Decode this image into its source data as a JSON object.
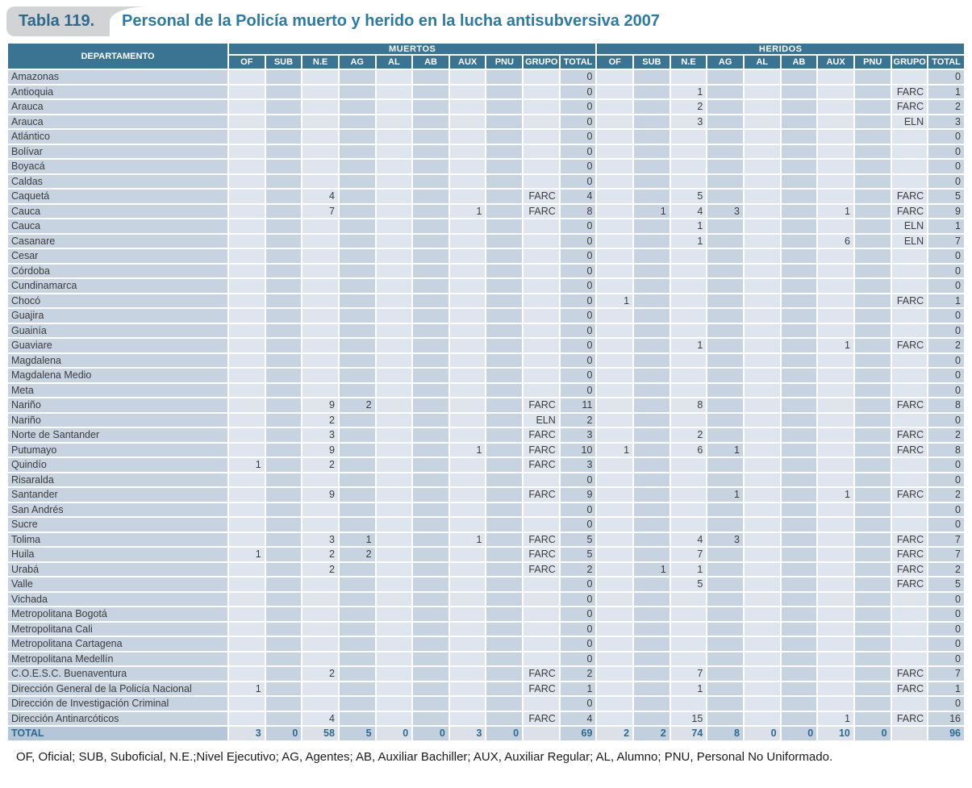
{
  "title": {
    "tab_label": "Tabla 119.",
    "text": "Personal de la Policía muerto y herido en la lucha antisubversiva 2007"
  },
  "table": {
    "dept_header": "DEPARTAMENTO",
    "groups": [
      {
        "label": "MUERTOS"
      },
      {
        "label": "HERIDOS"
      }
    ],
    "columns": [
      "OF",
      "SUB",
      "N.E",
      "AG",
      "AL",
      "AB",
      "AUX",
      "PNU",
      "GRUPO",
      "TOTAL"
    ],
    "rows": [
      {
        "dept": "Amazonas",
        "muertos": [
          "",
          "",
          "",
          "",
          "",
          "",
          "",
          "",
          "",
          "0"
        ],
        "heridos": [
          "",
          "",
          "",
          "",
          "",
          "",
          "",
          "",
          "",
          "0"
        ]
      },
      {
        "dept": "Antioquia",
        "muertos": [
          "",
          "",
          "",
          "",
          "",
          "",
          "",
          "",
          "",
          "0"
        ],
        "heridos": [
          "",
          "",
          "1",
          "",
          "",
          "",
          "",
          "",
          "FARC",
          "1"
        ]
      },
      {
        "dept": "Arauca",
        "muertos": [
          "",
          "",
          "",
          "",
          "",
          "",
          "",
          "",
          "",
          "0"
        ],
        "heridos": [
          "",
          "",
          "2",
          "",
          "",
          "",
          "",
          "",
          "FARC",
          "2"
        ]
      },
      {
        "dept": "Arauca",
        "muertos": [
          "",
          "",
          "",
          "",
          "",
          "",
          "",
          "",
          "",
          "0"
        ],
        "heridos": [
          "",
          "",
          "3",
          "",
          "",
          "",
          "",
          "",
          "ELN",
          "3"
        ]
      },
      {
        "dept": "Atlántico",
        "muertos": [
          "",
          "",
          "",
          "",
          "",
          "",
          "",
          "",
          "",
          "0"
        ],
        "heridos": [
          "",
          "",
          "",
          "",
          "",
          "",
          "",
          "",
          "",
          "0"
        ]
      },
      {
        "dept": "Bolívar",
        "muertos": [
          "",
          "",
          "",
          "",
          "",
          "",
          "",
          "",
          "",
          "0"
        ],
        "heridos": [
          "",
          "",
          "",
          "",
          "",
          "",
          "",
          "",
          "",
          "0"
        ]
      },
      {
        "dept": "Boyacá",
        "muertos": [
          "",
          "",
          "",
          "",
          "",
          "",
          "",
          "",
          "",
          "0"
        ],
        "heridos": [
          "",
          "",
          "",
          "",
          "",
          "",
          "",
          "",
          "",
          "0"
        ]
      },
      {
        "dept": "Caldas",
        "muertos": [
          "",
          "",
          "",
          "",
          "",
          "",
          "",
          "",
          "",
          "0"
        ],
        "heridos": [
          "",
          "",
          "",
          "",
          "",
          "",
          "",
          "",
          "",
          "0"
        ]
      },
      {
        "dept": "Caquetá",
        "muertos": [
          "",
          "",
          "4",
          "",
          "",
          "",
          "",
          "",
          "FARC",
          "4"
        ],
        "heridos": [
          "",
          "",
          "5",
          "",
          "",
          "",
          "",
          "",
          "FARC",
          "5"
        ]
      },
      {
        "dept": "Cauca",
        "muertos": [
          "",
          "",
          "7",
          "",
          "",
          "",
          "1",
          "",
          "FARC",
          "8"
        ],
        "heridos": [
          "",
          "1",
          "4",
          "3",
          "",
          "",
          "1",
          "",
          "FARC",
          "9"
        ]
      },
      {
        "dept": "Cauca",
        "muertos": [
          "",
          "",
          "",
          "",
          "",
          "",
          "",
          "",
          "",
          "0"
        ],
        "heridos": [
          "",
          "",
          "1",
          "",
          "",
          "",
          "",
          "",
          "ELN",
          "1"
        ]
      },
      {
        "dept": "Casanare",
        "muertos": [
          "",
          "",
          "",
          "",
          "",
          "",
          "",
          "",
          "",
          "0"
        ],
        "heridos": [
          "",
          "",
          "1",
          "",
          "",
          "",
          "6",
          "",
          "ELN",
          "7"
        ]
      },
      {
        "dept": "Cesar",
        "muertos": [
          "",
          "",
          "",
          "",
          "",
          "",
          "",
          "",
          "",
          "0"
        ],
        "heridos": [
          "",
          "",
          "",
          "",
          "",
          "",
          "",
          "",
          "",
          "0"
        ]
      },
      {
        "dept": "Córdoba",
        "muertos": [
          "",
          "",
          "",
          "",
          "",
          "",
          "",
          "",
          "",
          "0"
        ],
        "heridos": [
          "",
          "",
          "",
          "",
          "",
          "",
          "",
          "",
          "",
          "0"
        ]
      },
      {
        "dept": "Cundinamarca",
        "muertos": [
          "",
          "",
          "",
          "",
          "",
          "",
          "",
          "",
          "",
          "0"
        ],
        "heridos": [
          "",
          "",
          "",
          "",
          "",
          "",
          "",
          "",
          "",
          "0"
        ]
      },
      {
        "dept": "Chocó",
        "muertos": [
          "",
          "",
          "",
          "",
          "",
          "",
          "",
          "",
          "",
          "0"
        ],
        "heridos": [
          "1",
          "",
          "",
          "",
          "",
          "",
          "",
          "",
          "FARC",
          "1"
        ]
      },
      {
        "dept": "Guajira",
        "muertos": [
          "",
          "",
          "",
          "",
          "",
          "",
          "",
          "",
          "",
          "0"
        ],
        "heridos": [
          "",
          "",
          "",
          "",
          "",
          "",
          "",
          "",
          "",
          "0"
        ]
      },
      {
        "dept": "Guainía",
        "muertos": [
          "",
          "",
          "",
          "",
          "",
          "",
          "",
          "",
          "",
          "0"
        ],
        "heridos": [
          "",
          "",
          "",
          "",
          "",
          "",
          "",
          "",
          "",
          "0"
        ]
      },
      {
        "dept": "Guaviare",
        "muertos": [
          "",
          "",
          "",
          "",
          "",
          "",
          "",
          "",
          "",
          "0"
        ],
        "heridos": [
          "",
          "",
          "1",
          "",
          "",
          "",
          "1",
          "",
          "FARC",
          "2"
        ]
      },
      {
        "dept": "Magdalena",
        "muertos": [
          "",
          "",
          "",
          "",
          "",
          "",
          "",
          "",
          "",
          "0"
        ],
        "heridos": [
          "",
          "",
          "",
          "",
          "",
          "",
          "",
          "",
          "",
          "0"
        ]
      },
      {
        "dept": "Magdalena Medio",
        "muertos": [
          "",
          "",
          "",
          "",
          "",
          "",
          "",
          "",
          "",
          "0"
        ],
        "heridos": [
          "",
          "",
          "",
          "",
          "",
          "",
          "",
          "",
          "",
          "0"
        ]
      },
      {
        "dept": "Meta",
        "muertos": [
          "",
          "",
          "",
          "",
          "",
          "",
          "",
          "",
          "",
          "0"
        ],
        "heridos": [
          "",
          "",
          "",
          "",
          "",
          "",
          "",
          "",
          "",
          "0"
        ]
      },
      {
        "dept": "Nariño",
        "muertos": [
          "",
          "",
          "9",
          "2",
          "",
          "",
          "",
          "",
          "FARC",
          "11"
        ],
        "heridos": [
          "",
          "",
          "8",
          "",
          "",
          "",
          "",
          "",
          "FARC",
          "8"
        ]
      },
      {
        "dept": "Nariño",
        "muertos": [
          "",
          "",
          "2",
          "",
          "",
          "",
          "",
          "",
          "ELN",
          "2"
        ],
        "heridos": [
          "",
          "",
          "",
          "",
          "",
          "",
          "",
          "",
          "",
          "0"
        ]
      },
      {
        "dept": "Norte de Santander",
        "muertos": [
          "",
          "",
          "3",
          "",
          "",
          "",
          "",
          "",
          "FARC",
          "3"
        ],
        "heridos": [
          "",
          "",
          "2",
          "",
          "",
          "",
          "",
          "",
          "FARC",
          "2"
        ]
      },
      {
        "dept": "Putumayo",
        "muertos": [
          "",
          "",
          "9",
          "",
          "",
          "",
          "1",
          "",
          "FARC",
          "10"
        ],
        "heridos": [
          "1",
          "",
          "6",
          "1",
          "",
          "",
          "",
          "",
          "FARC",
          "8"
        ]
      },
      {
        "dept": "Quindío",
        "muertos": [
          "1",
          "",
          "2",
          "",
          "",
          "",
          "",
          "",
          "FARC",
          "3"
        ],
        "heridos": [
          "",
          "",
          "",
          "",
          "",
          "",
          "",
          "",
          "",
          "0"
        ]
      },
      {
        "dept": "Risaralda",
        "muertos": [
          "",
          "",
          "",
          "",
          "",
          "",
          "",
          "",
          "",
          "0"
        ],
        "heridos": [
          "",
          "",
          "",
          "",
          "",
          "",
          "",
          "",
          "",
          "0"
        ]
      },
      {
        "dept": "Santander",
        "muertos": [
          "",
          "",
          "9",
          "",
          "",
          "",
          "",
          "",
          "FARC",
          "9"
        ],
        "heridos": [
          "",
          "",
          "",
          "1",
          "",
          "",
          "1",
          "",
          "FARC",
          "2"
        ]
      },
      {
        "dept": "San Andrés",
        "muertos": [
          "",
          "",
          "",
          "",
          "",
          "",
          "",
          "",
          "",
          "0"
        ],
        "heridos": [
          "",
          "",
          "",
          "",
          "",
          "",
          "",
          "",
          "",
          "0"
        ]
      },
      {
        "dept": "Sucre",
        "muertos": [
          "",
          "",
          "",
          "",
          "",
          "",
          "",
          "",
          "",
          "0"
        ],
        "heridos": [
          "",
          "",
          "",
          "",
          "",
          "",
          "",
          "",
          "",
          "0"
        ]
      },
      {
        "dept": "Tolima",
        "muertos": [
          "",
          "",
          "3",
          "1",
          "",
          "",
          "1",
          "",
          "FARC",
          "5"
        ],
        "heridos": [
          "",
          "",
          "4",
          "3",
          "",
          "",
          "",
          "",
          "FARC",
          "7"
        ]
      },
      {
        "dept": "Huila",
        "muertos": [
          "1",
          "",
          "2",
          "2",
          "",
          "",
          "",
          "",
          "FARC",
          "5"
        ],
        "heridos": [
          "",
          "",
          "7",
          "",
          "",
          "",
          "",
          "",
          "FARC",
          "7"
        ]
      },
      {
        "dept": "Urabá",
        "muertos": [
          "",
          "",
          "2",
          "",
          "",
          "",
          "",
          "",
          "FARC",
          "2"
        ],
        "heridos": [
          "",
          "1",
          "1",
          "",
          "",
          "",
          "",
          "",
          "FARC",
          "2"
        ]
      },
      {
        "dept": "Valle",
        "muertos": [
          "",
          "",
          "",
          "",
          "",
          "",
          "",
          "",
          "",
          "0"
        ],
        "heridos": [
          "",
          "",
          "5",
          "",
          "",
          "",
          "",
          "",
          "FARC",
          "5"
        ]
      },
      {
        "dept": "Vichada",
        "muertos": [
          "",
          "",
          "",
          "",
          "",
          "",
          "",
          "",
          "",
          "0"
        ],
        "heridos": [
          "",
          "",
          "",
          "",
          "",
          "",
          "",
          "",
          "",
          "0"
        ]
      },
      {
        "dept": "Metropolitana Bogotá",
        "muertos": [
          "",
          "",
          "",
          "",
          "",
          "",
          "",
          "",
          "",
          "0"
        ],
        "heridos": [
          "",
          "",
          "",
          "",
          "",
          "",
          "",
          "",
          "",
          "0"
        ]
      },
      {
        "dept": "Metropolitana Cali",
        "muertos": [
          "",
          "",
          "",
          "",
          "",
          "",
          "",
          "",
          "",
          "0"
        ],
        "heridos": [
          "",
          "",
          "",
          "",
          "",
          "",
          "",
          "",
          "",
          "0"
        ]
      },
      {
        "dept": "Metropolitana Cartagena",
        "muertos": [
          "",
          "",
          "",
          "",
          "",
          "",
          "",
          "",
          "",
          "0"
        ],
        "heridos": [
          "",
          "",
          "",
          "",
          "",
          "",
          "",
          "",
          "",
          "0"
        ]
      },
      {
        "dept": "Metropolitana Medellín",
        "muertos": [
          "",
          "",
          "",
          "",
          "",
          "",
          "",
          "",
          "",
          "0"
        ],
        "heridos": [
          "",
          "",
          "",
          "",
          "",
          "",
          "",
          "",
          "",
          "0"
        ]
      },
      {
        "dept": "C.O.E.S.C. Buenaventura",
        "muertos": [
          "",
          "",
          "2",
          "",
          "",
          "",
          "",
          "",
          "FARC",
          "2"
        ],
        "heridos": [
          "",
          "",
          "7",
          "",
          "",
          "",
          "",
          "",
          "FARC",
          "7"
        ]
      },
      {
        "dept": "Dirección General de la Policía Nacional",
        "muertos": [
          "1",
          "",
          "",
          "",
          "",
          "",
          "",
          "",
          "FARC",
          "1"
        ],
        "heridos": [
          "",
          "",
          "1",
          "",
          "",
          "",
          "",
          "",
          "FARC",
          "1"
        ]
      },
      {
        "dept": "Dirección de Investigación Criminal",
        "muertos": [
          "",
          "",
          "",
          "",
          "",
          "",
          "",
          "",
          "",
          "0"
        ],
        "heridos": [
          "",
          "",
          "",
          "",
          "",
          "",
          "",
          "",
          "",
          "0"
        ]
      },
      {
        "dept": "Dirección Antinarcóticos",
        "muertos": [
          "",
          "",
          "4",
          "",
          "",
          "",
          "",
          "",
          "FARC",
          "4"
        ],
        "heridos": [
          "",
          "",
          "15",
          "",
          "",
          "",
          "1",
          "",
          "FARC",
          "16"
        ]
      }
    ],
    "total_row": {
      "dept": "TOTAL",
      "muertos": [
        "3",
        "0",
        "58",
        "5",
        "0",
        "0",
        "3",
        "0",
        "",
        "69"
      ],
      "heridos": [
        "2",
        "2",
        "74",
        "8",
        "0",
        "0",
        "10",
        "0",
        "",
        "96"
      ]
    }
  },
  "footer": {
    "note": "OF, Oficial; SUB, Suboficial, N.E.;Nivel Ejecutivo; AG, Agentes; AB, Auxiliar Bachiller; AUX, Auxiliar Regular; AL, Alumno; PNU, Personal No Uniformado."
  },
  "colors": {
    "header_bg": "#3b7393",
    "cell_dark": "#c7d3e1",
    "cell_light": "#dfe5ee",
    "total_accent": "#2d6a8f",
    "tab_bg": "#d2d3d5",
    "title_color": "#2b7ba3"
  }
}
